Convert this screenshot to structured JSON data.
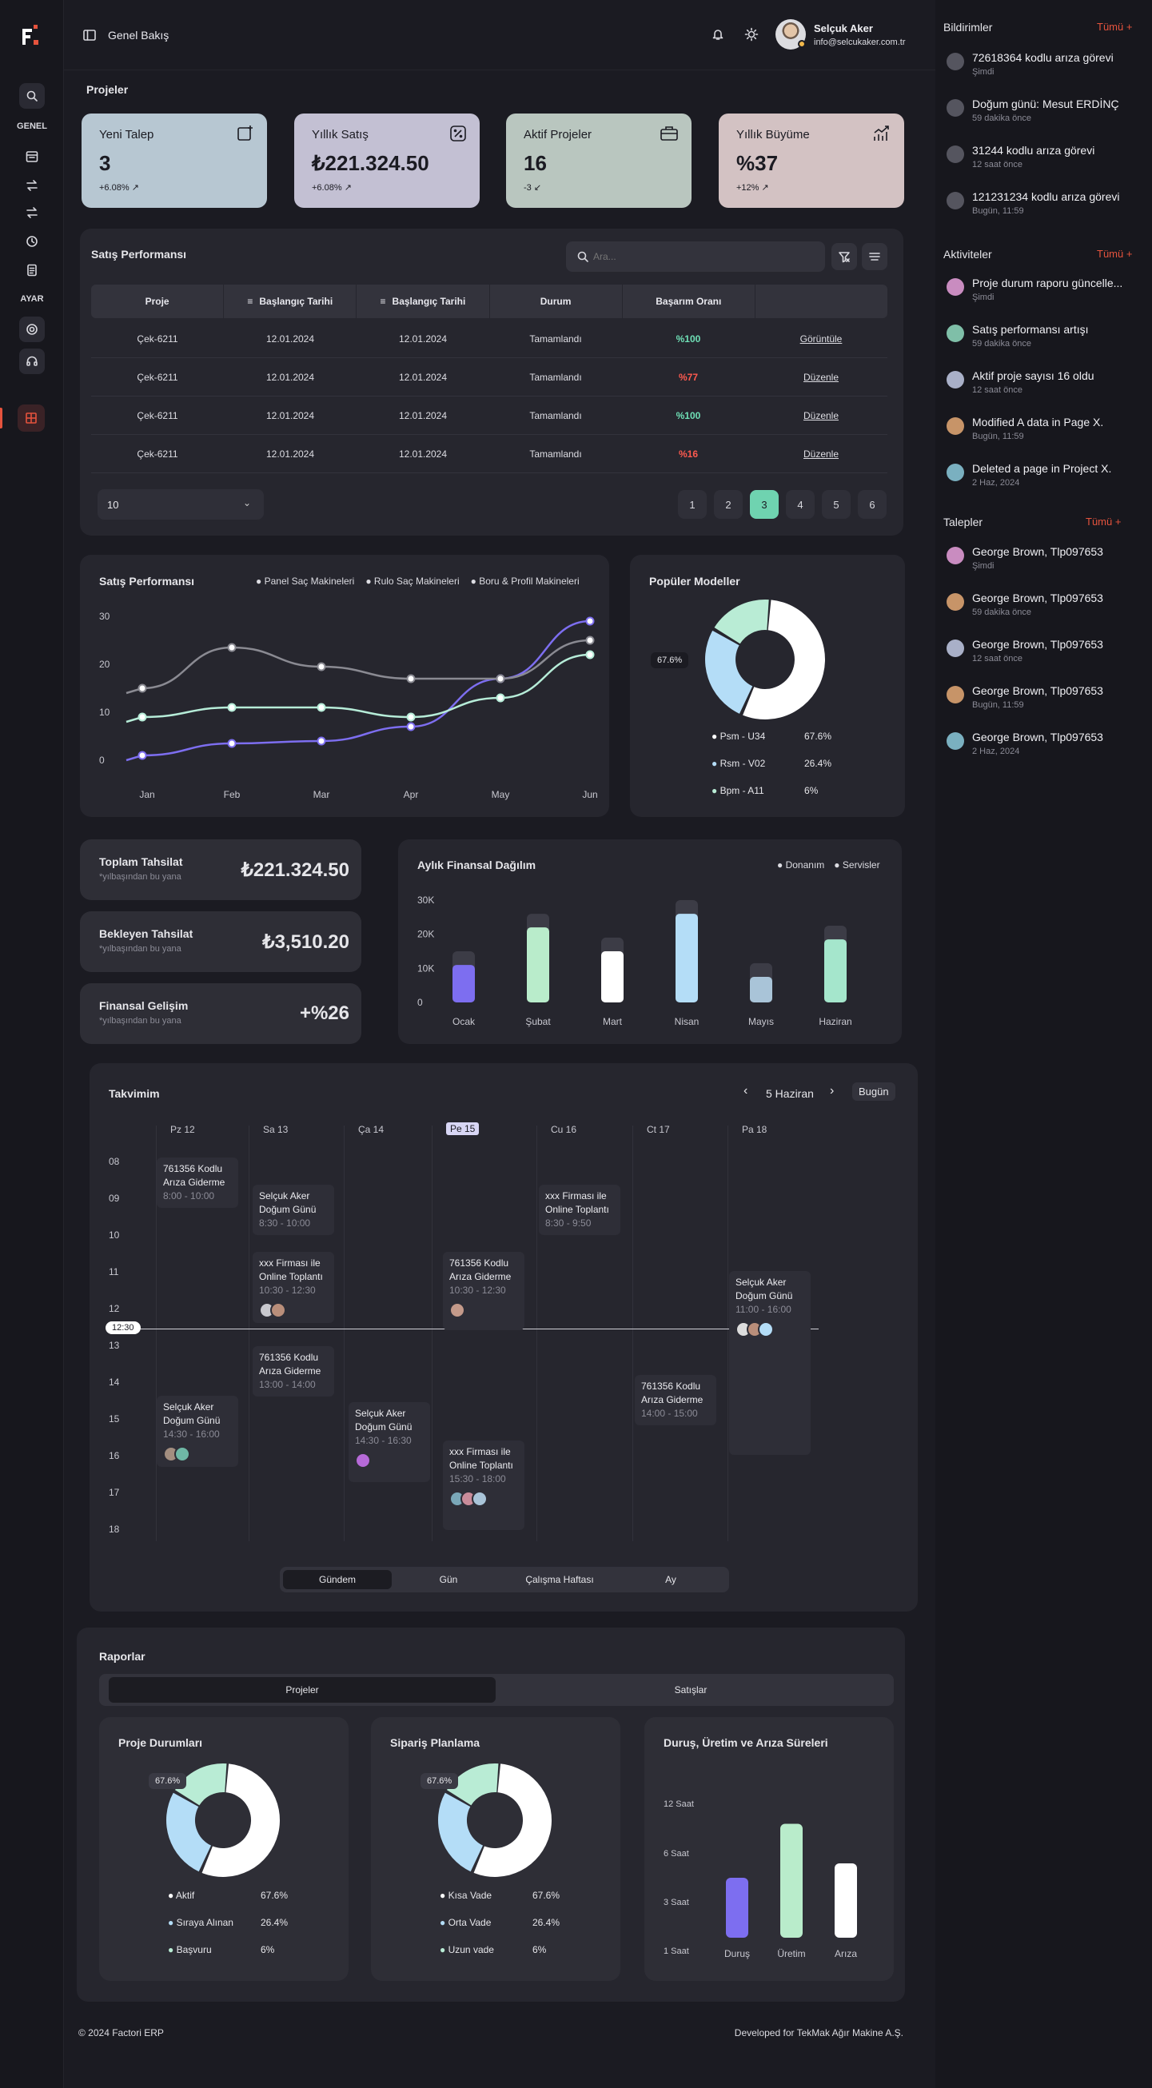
{
  "app": {
    "logo": "F",
    "title": "Genel Bakış"
  },
  "user": {
    "name": "Selçuk Aker",
    "email": "info@selcukaker.com.tr"
  },
  "sidebar": {
    "section1": "GENEL",
    "section2": "AYAR"
  },
  "page": {
    "section_title": "Projeler"
  },
  "stats": [
    {
      "title": "Yeni Talep",
      "value": "3",
      "sub": "+6.08%",
      "icon": "add-note-icon",
      "color": "#b7c7d2"
    },
    {
      "title": "Yıllık Satış",
      "value": "₺221.324.50",
      "sub": "+6.08%",
      "icon": "percent-icon",
      "color": "#c3c0d3"
    },
    {
      "title": "Aktif Projeler",
      "value": "16",
      "sub": "-3",
      "icon": "briefcase-icon",
      "color": "#b9c6bf"
    },
    {
      "title": "Yıllık Büyüme",
      "value": "%37",
      "sub": "+12%",
      "icon": "growth-chart-icon",
      "color": "#d3c2c3"
    }
  ],
  "sales_table": {
    "title": "Satış Performansı",
    "search_placeholder": "Ara...",
    "headers": [
      "Proje",
      "Başlangıç Tarihi",
      "Başlangıç Tarihi",
      "Durum",
      "Başarım Oranı",
      ""
    ],
    "rows": [
      {
        "proje": "Çek-6211",
        "d1": "12.01.2024",
        "d2": "12.01.2024",
        "durum": "Tamamlandı",
        "oran": "%100",
        "action": "Görüntüle",
        "good": true
      },
      {
        "proje": "Çek-6211",
        "d1": "12.01.2024",
        "d2": "12.01.2024",
        "durum": "Tamamlandı",
        "oran": "%77",
        "action": "Düzenle",
        "good": false
      },
      {
        "proje": "Çek-6211",
        "d1": "12.01.2024",
        "d2": "12.01.2024",
        "durum": "Tamamlandı",
        "oran": "%100",
        "action": "Düzenle",
        "good": true
      },
      {
        "proje": "Çek-6211",
        "d1": "12.01.2024",
        "d2": "12.01.2024",
        "durum": "Tamamlandı",
        "oran": "%16",
        "action": "Düzenle",
        "good": false
      }
    ],
    "page_size": "10",
    "pages": [
      "1",
      "2",
      "3",
      "4",
      "5",
      "6"
    ],
    "active_page": "3"
  },
  "line_chart_card": {
    "title": "Satış Performansı"
  },
  "donut_card": {
    "title": "Popüler Modeller",
    "tooltip": "67.6%"
  },
  "finance": [
    {
      "title": "Toplam Tahsilat",
      "sub": "*yılbaşından bu yana",
      "value": "₺221.324.50"
    },
    {
      "title": "Bekleyen Tahsilat",
      "sub": "*yılbaşından bu yana",
      "value": "₺3,510.20"
    },
    {
      "title": "Finansal Gelişim",
      "sub": "*yılbaşından bu yana",
      "value": "+%26"
    }
  ],
  "bar_card": {
    "title": "Aylık Finansal Dağılım"
  },
  "calendar": {
    "title": "Takvimim",
    "month": "5 Haziran",
    "today_btn": "Bugün",
    "days": [
      "Pz 12",
      "Sa 13",
      "Ça 14",
      "Pe 15",
      "Cu 16",
      "Ct 17",
      "Pa 18"
    ],
    "hours": [
      "08",
      "09",
      "10",
      "11",
      "12",
      "13",
      "14",
      "15",
      "16",
      "17",
      "18"
    ],
    "now": "12:30",
    "events": [
      {
        "title": "761356 Kodlu Arıza Giderme",
        "time": "8:00 - 10:00"
      },
      {
        "title": "Selçuk Aker Doğum Günü",
        "time": "8:30 - 10:00"
      },
      {
        "title": "xxx Firması ile Online Toplantı",
        "time": "10:30 - 12:30"
      },
      {
        "title": "761356 Kodlu Arıza Giderme",
        "time": "13:00 - 14:00"
      },
      {
        "title": "Selçuk Aker Doğum Günü",
        "time": "14:30 - 16:00"
      },
      {
        "title": "Selçuk Aker Doğum Günü",
        "time": "14:30 - 16:30"
      },
      {
        "title": "761356 Kodlu Arıza Giderme",
        "time": "10:30 - 12:30"
      },
      {
        "title": "xxx Firması ile Online Toplantı",
        "time": "15:30 - 18:00"
      },
      {
        "title": "xxx Firması ile Online Toplantı",
        "time": "8:30 - 9:50"
      },
      {
        "title": "761356 Kodlu Arıza Giderme",
        "time": "14:00 - 15:00"
      },
      {
        "title": "Selçuk Aker Doğum Günü",
        "time": "11:00 - 16:00"
      }
    ],
    "views": [
      "Gündem",
      "Gün",
      "Çalışma Haftası",
      "Ay"
    ]
  },
  "reports": {
    "title": "Raporlar",
    "tabs": [
      "Projeler",
      "Satışlar"
    ],
    "proje_title": "Proje Durumları",
    "siparis_title": "Sipariş Planlama",
    "durus_title": "Duruş, Üretim ve Arıza Süreleri",
    "tooltip": "67.6%"
  },
  "footer": {
    "left": "© 2024 Factori ERP",
    "right": "Developed for TekMak Ağır Makine A.Ş."
  },
  "notifications": {
    "title": "Bildirimler",
    "all": "Tümü +",
    "items": [
      {
        "title": "72618364 kodlu arıza görevi",
        "time": "Şimdi"
      },
      {
        "title": "Doğum günü: Mesut ERDİNÇ",
        "time": "59 dakika önce"
      },
      {
        "title": "31244 kodlu arıza görevi",
        "time": "12 saat önce"
      },
      {
        "title": "121231234 kodlu arıza görevi",
        "time": "Bugün, 11:59"
      }
    ]
  },
  "activities": {
    "title": "Aktiviteler",
    "all": "Tümü +",
    "items": [
      {
        "title": "Proje durum raporu güncelle...",
        "time": "Şimdi"
      },
      {
        "title": "Satış performansı artışı",
        "time": "59 dakika önce"
      },
      {
        "title": "Aktif proje sayısı 16 oldu",
        "time": "12 saat önce"
      },
      {
        "title": "Modified A data in Page X.",
        "time": "Bugün, 11:59"
      },
      {
        "title": "Deleted a page in Project X.",
        "time": "2 Haz, 2024"
      }
    ]
  },
  "requests": {
    "title": "Talepler",
    "all": "Tümü +",
    "items": [
      {
        "title": "George Brown, Tlp097653",
        "time": "Şimdi"
      },
      {
        "title": "George Brown, Tlp097653",
        "time": "59 dakika önce"
      },
      {
        "title": "George Brown, Tlp097653",
        "time": "12 saat önce"
      },
      {
        "title": "George Brown, Tlp097653",
        "time": "Bugün, 11:59"
      },
      {
        "title": "George Brown, Tlp097653",
        "time": "2 Haz, 2024"
      }
    ]
  },
  "chart_data": [
    {
      "type": "line",
      "title": "Satış Performansı",
      "x": [
        "Jan",
        "Feb",
        "Mar",
        "Apr",
        "May",
        "Jun"
      ],
      "yticks": [
        "0",
        "10",
        "20",
        "30"
      ],
      "ylim": [
        0,
        30
      ],
      "series": [
        {
          "name": "Panel Saç Makineleri",
          "color": "#7d6ef0",
          "values": [
            1,
            3.5,
            4,
            7,
            17,
            29
          ]
        },
        {
          "name": "Rulo Saç Makineleri",
          "color": "#8a8a92",
          "values": [
            15,
            23.5,
            19.5,
            17,
            17,
            25
          ]
        },
        {
          "name": "Boru & Profil Makineleri",
          "color": "#b6ecd8",
          "values": [
            9,
            11,
            11,
            9,
            13,
            22
          ]
        }
      ]
    },
    {
      "type": "pie",
      "title": "Popüler Modeller",
      "labels": [
        "Psm - U34",
        "Rsm - V02",
        "Bpm - A11"
      ],
      "values": [
        67.6,
        26.4,
        6
      ],
      "display": [
        "67.6%",
        "26.4%",
        "6%"
      ],
      "colors": [
        "#ffffff",
        "#b4ddf7",
        "#b9ecd5"
      ]
    },
    {
      "type": "bar",
      "title": "Aylık Finansal Dağılım",
      "categories": [
        "Ocak",
        "Şubat",
        "Mart",
        "Nisan",
        "Mayıs",
        "Haziran"
      ],
      "yticks": [
        "0",
        "10K",
        "20K",
        "30K"
      ],
      "ylim": [
        0,
        30000
      ],
      "legend": [
        "Donanım",
        "Servisler"
      ],
      "series": [
        {
          "name": "Donanım",
          "values": [
            11000,
            22000,
            15000,
            26000,
            7500,
            18500
          ]
        },
        {
          "name": "Servisler",
          "values": [
            15000,
            26000,
            19000,
            30000,
            11500,
            22500
          ]
        }
      ],
      "colors": [
        "#7d6ef0",
        "#b9eccb",
        "#ffffff",
        "#b4ddf7",
        "#a9c4d8",
        "#a5e6cc"
      ]
    },
    {
      "type": "pie",
      "title": "Proje Durumları",
      "labels": [
        "Aktif",
        "Sıraya Alınan",
        "Başvuru"
      ],
      "values": [
        67.6,
        26.4,
        6
      ],
      "display": [
        "67.6%",
        "26.4%",
        "6%"
      ],
      "colors": [
        "#ffffff",
        "#b4ddf7",
        "#b9ecd5"
      ]
    },
    {
      "type": "pie",
      "title": "Sipariş Planlama",
      "labels": [
        "Kısa Vade",
        "Orta Vade",
        "Uzun vade"
      ],
      "values": [
        67.6,
        26.4,
        6
      ],
      "display": [
        "67.6%",
        "26.4%",
        "6%"
      ],
      "colors": [
        "#ffffff",
        "#b4ddf7",
        "#b9ecd5"
      ]
    },
    {
      "type": "bar",
      "title": "Duruş, Üretim ve Arıza Süreleri",
      "categories": [
        "Duruş",
        "Üretim",
        "Arıza"
      ],
      "yticks": [
        "1 Saat",
        "3 Saat",
        "6 Saat",
        "12 Saat"
      ],
      "values": [
        5,
        9.5,
        6.2
      ],
      "colors": [
        "#7d6ef0",
        "#b9eccb",
        "#ffffff"
      ]
    }
  ]
}
